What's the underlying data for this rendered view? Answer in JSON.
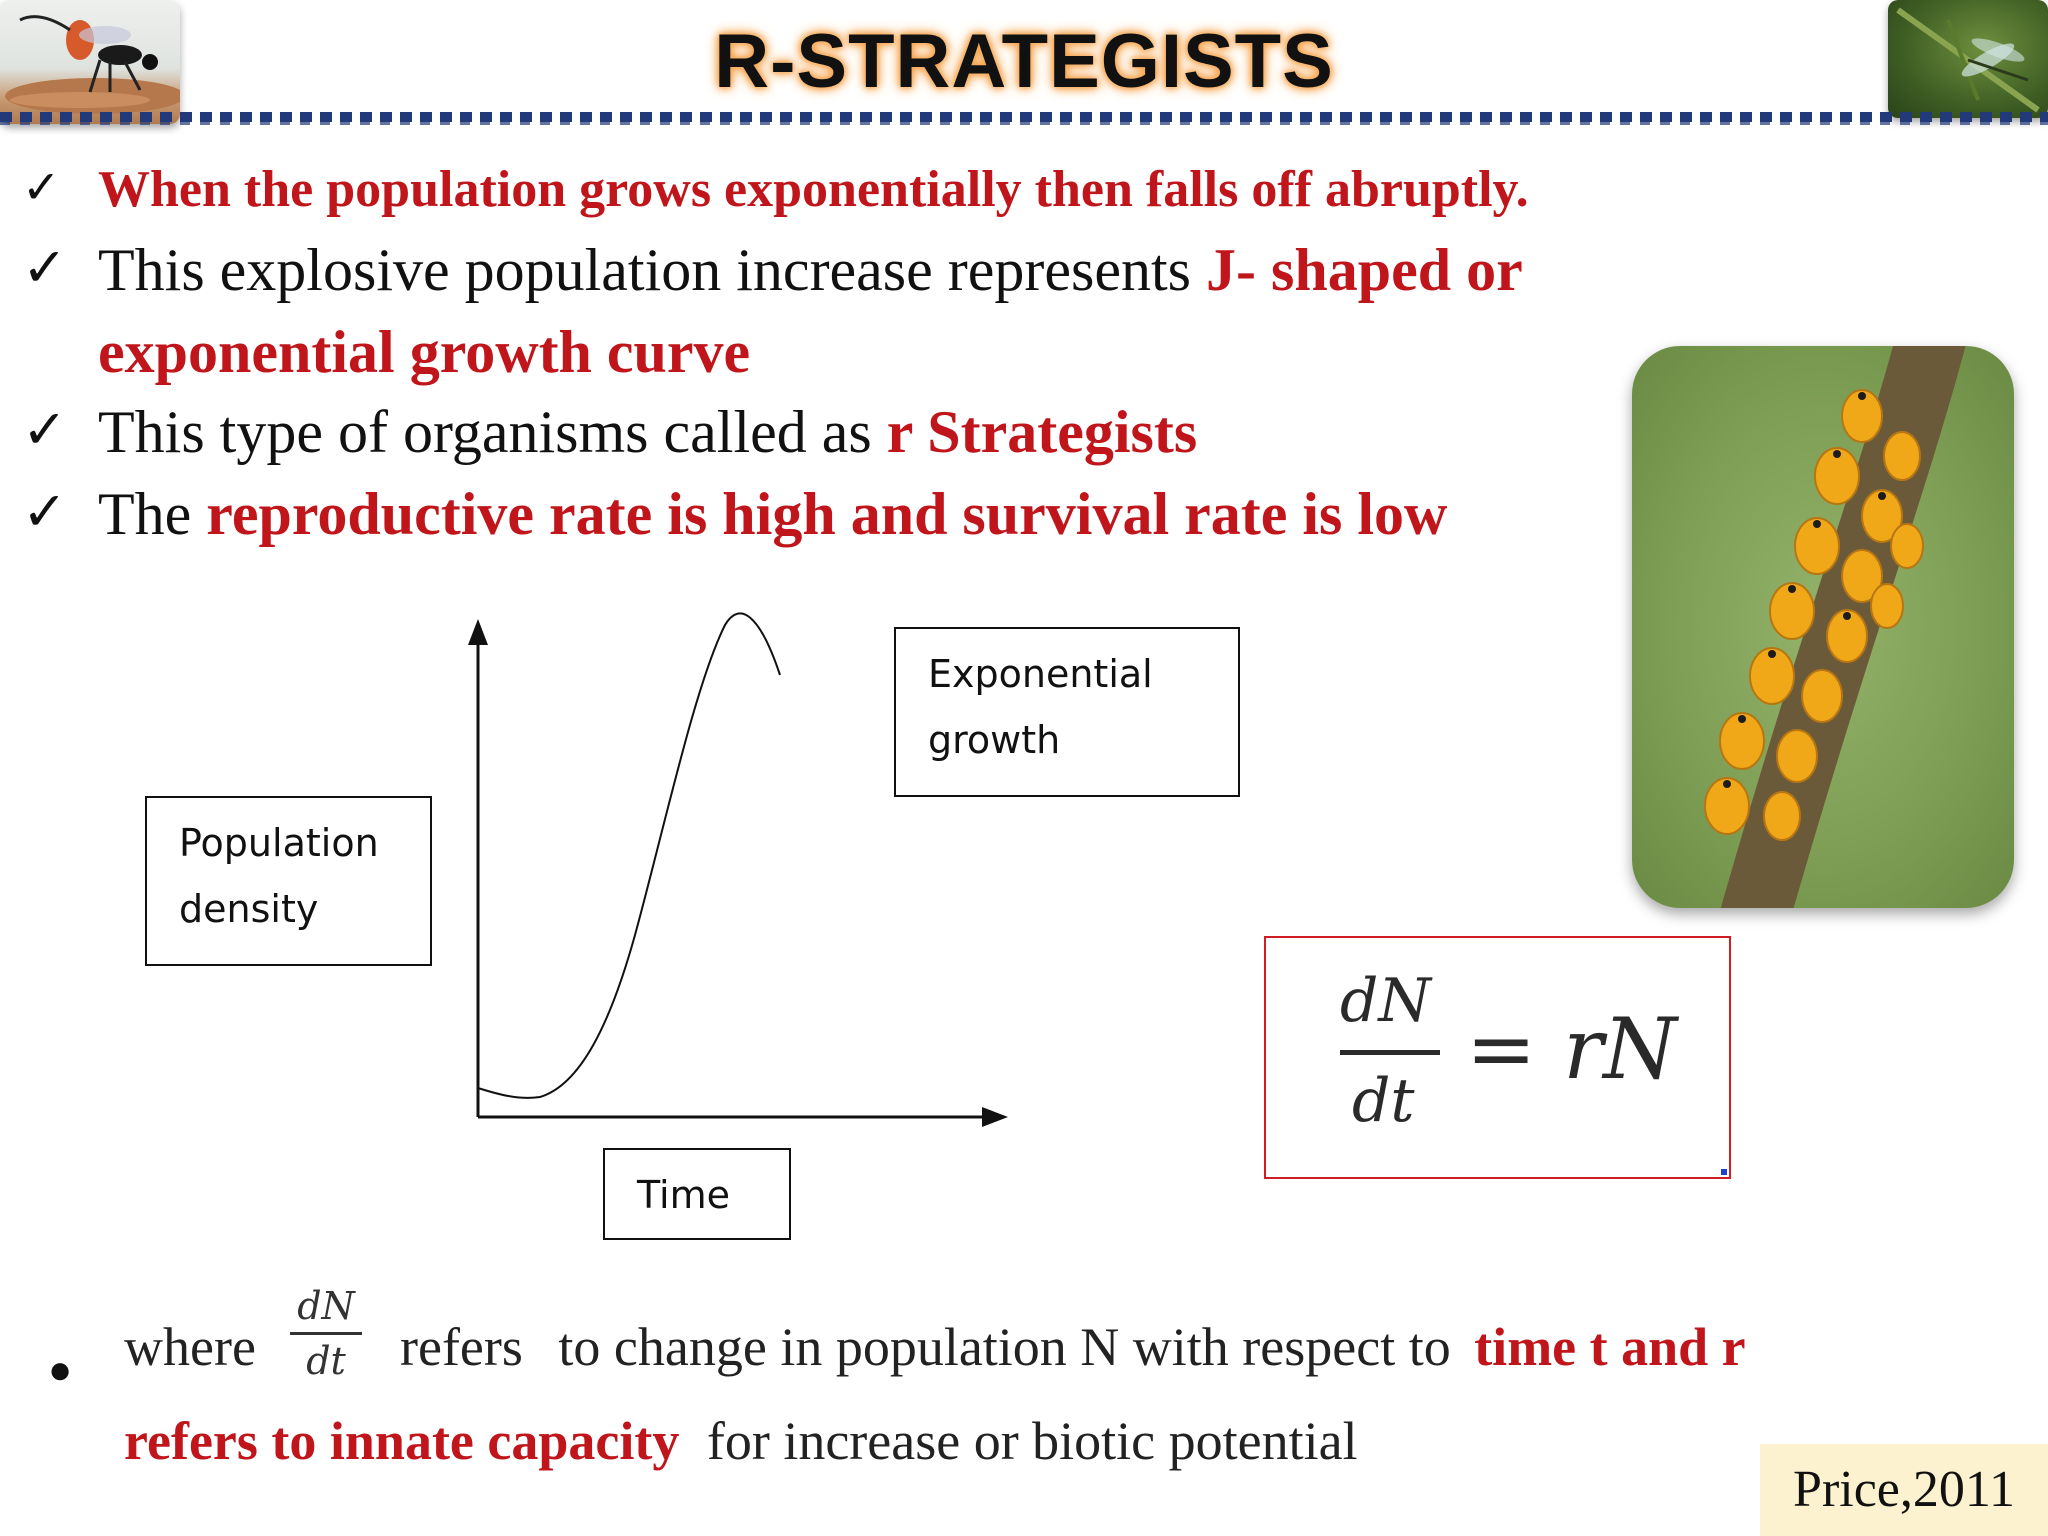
{
  "header": {
    "title": "R-STRATEGISTS"
  },
  "bullets": [
    {
      "parts": [
        {
          "text": "When the population grows exponentially then falls off abruptly.",
          "emphasis": true
        }
      ]
    },
    {
      "parts": [
        {
          "text": "This explosive population increase represents ",
          "emphasis": false
        },
        {
          "text": "J- shaped or",
          "emphasis": true
        }
      ]
    },
    {
      "parts": [
        {
          "text": "exponential growth curve",
          "emphasis": true
        }
      ]
    },
    {
      "parts": [
        {
          "text": "This type of organisms called as ",
          "emphasis": false
        },
        {
          "text": "r Strategists",
          "emphasis": true
        }
      ]
    },
    {
      "parts": [
        {
          "text": "The ",
          "emphasis": false
        },
        {
          "text": "reproductive rate is high and survival rate is low",
          "emphasis": true
        }
      ]
    }
  ],
  "diagram": {
    "y_label_line1": "Population",
    "y_label_line2": "density",
    "curve_label_line1": "Exponential",
    "curve_label_line2": "growth",
    "x_label": "Time"
  },
  "equation": {
    "numerator": "dN",
    "denominator": "dt",
    "rhs": "= rN"
  },
  "footnote": {
    "where": "where",
    "frac_num": "dN",
    "frac_den": "dt",
    "refers": "refers",
    "middle": "to change in population N with respect to",
    "red1": "time t and r",
    "red2": "refers to innate capacity",
    "end": "for increase or biotic potential"
  },
  "citation": "Price,2011",
  "colors": {
    "emphasis": "#c0161b",
    "rule": "#233a7a",
    "equation_border": "#d01e24",
    "citation_bg": "#fdf2cf"
  },
  "icons": [
    "checkmark-icon",
    "bullet-dot-icon"
  ],
  "photos": [
    "wasp-photo",
    "dragonfly-photo",
    "aphid-photo"
  ]
}
